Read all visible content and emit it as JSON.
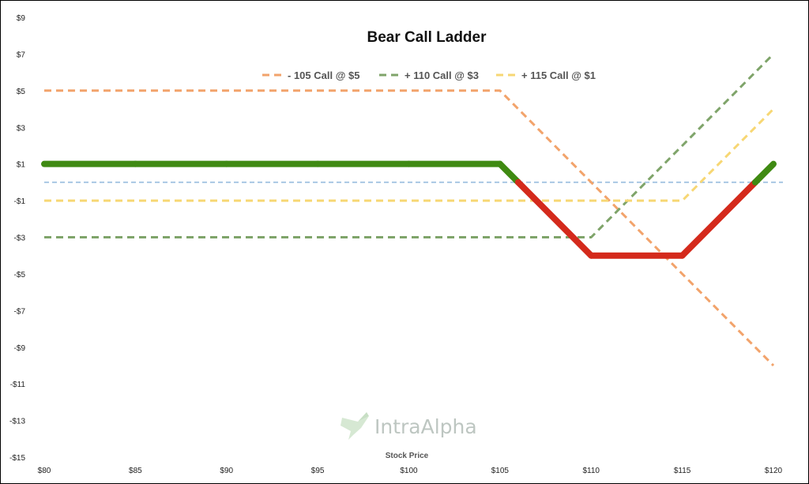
{
  "chart_data": {
    "type": "line",
    "title": "Bear Call Ladder",
    "xlabel": "Stock Price",
    "ylabel": "",
    "x": [
      80,
      85,
      90,
      95,
      100,
      105,
      110,
      115,
      120
    ],
    "x_tick_labels": [
      "$80",
      "$85",
      "$90",
      "$95",
      "$100",
      "$105",
      "$110",
      "$115",
      "$120"
    ],
    "xlim": [
      80,
      120
    ],
    "y_ticks": [
      9,
      7,
      5,
      3,
      1,
      -1,
      -3,
      -5,
      -7,
      -9,
      -11,
      -13,
      -15
    ],
    "y_tick_labels": [
      "$9",
      "$7",
      "$5",
      "$3",
      "$1",
      "-$1",
      "-$3",
      "-$5",
      "-$7",
      "-$9",
      "-$11",
      "-$13",
      "-$15"
    ],
    "ylim": [
      -15,
      9
    ],
    "grid": false,
    "legend_position": "top-center",
    "series": [
      {
        "name": "- 105 Call @ $5",
        "values": [
          5,
          5,
          5,
          5,
          5,
          5,
          0,
          -5,
          -10
        ],
        "style": "dashed",
        "color": "#f2a36b"
      },
      {
        "name": "+ 110 Call @ $3",
        "values": [
          -3,
          -3,
          -3,
          -3,
          -3,
          -3,
          -3,
          2,
          7
        ],
        "style": "dashed",
        "color": "#7fa46a"
      },
      {
        "name": "+ 115 Call @ $1",
        "values": [
          -1,
          -1,
          -1,
          -1,
          -1,
          -1,
          -1,
          -1,
          4
        ],
        "style": "dashed",
        "color": "#f7d774"
      },
      {
        "name": "",
        "values": [
          1,
          1,
          1,
          1,
          1,
          1,
          -4,
          -4,
          1
        ],
        "style": "solid-thick",
        "color_profit": "#3f8a12",
        "color_loss": "#d42a1c"
      }
    ],
    "zero_line": {
      "value": 0,
      "color": "#a9c8e4",
      "style": "dashed"
    }
  },
  "watermark": {
    "text": "IntraAlpha",
    "icon": "hummingbird-icon",
    "color": "#a8b3ad"
  }
}
